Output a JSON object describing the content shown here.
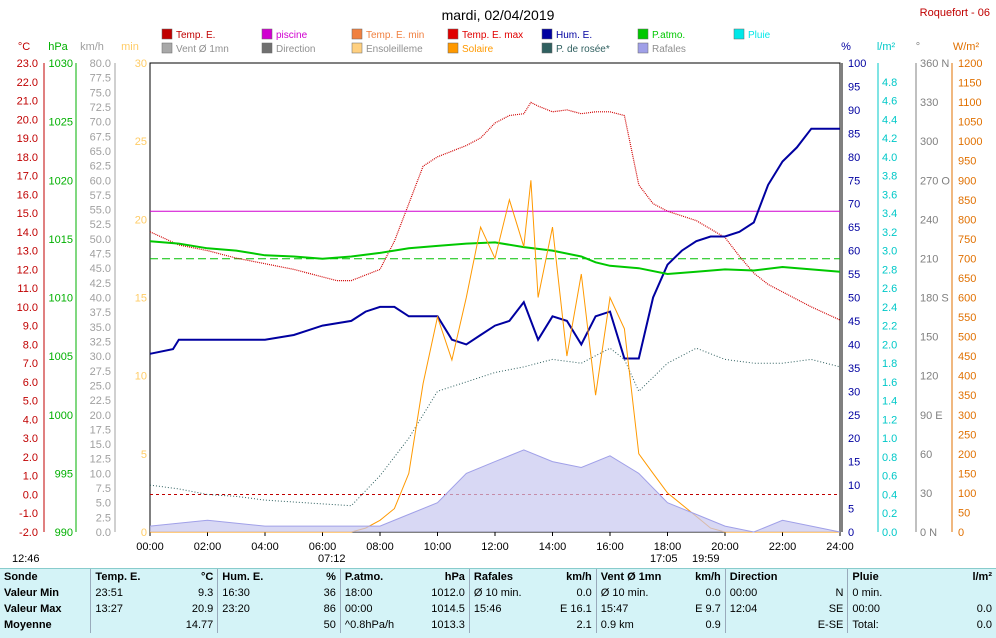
{
  "title": "mardi, 02/04/2019",
  "station": "Roquefort - 06",
  "legend": [
    {
      "label": "Temp. E.",
      "color": "#c00000"
    },
    {
      "label": "piscine",
      "color": "#d000d0"
    },
    {
      "label": "Temp. E. min",
      "color": "#f08040"
    },
    {
      "label": "Temp. E. max",
      "color": "#e00000"
    },
    {
      "label": "Hum. E.",
      "color": "#0000a0"
    },
    {
      "label": "P.atmo.",
      "color": "#00c800"
    },
    {
      "label": "Pluie",
      "color": "#00e8e8"
    },
    {
      "label": "Vent Ø 1mn",
      "color": "#a8a8a8"
    },
    {
      "label": "Direction",
      "color": "#707070"
    },
    {
      "label": "Ensoleilleme",
      "color": "#ffd080"
    },
    {
      "label": "Solaire",
      "color": "#ff9900"
    },
    {
      "label": "P. de rosée*",
      "color": "#306060"
    },
    {
      "label": "Rafales",
      "color": "#a0a0e8"
    }
  ],
  "axis_units": {
    "temp": "°C",
    "pressure": "hPa",
    "wind": "km/h",
    "minutes": "min",
    "humidity": "%",
    "rain": "l/m²",
    "direction": "°",
    "solar": "W/m²"
  },
  "sun_times": {
    "sunrise": "07:12",
    "sunset": "19:59",
    "solar_noon": "17:05",
    "start": "12:46"
  },
  "chart_data": {
    "type": "line",
    "x_unit": "hour",
    "xlim": [
      0,
      24
    ],
    "x_ticks": [
      "00:00",
      "02:00",
      "04:00",
      "06:00",
      "08:00",
      "10:00",
      "12:00",
      "14:00",
      "16:00",
      "18:00",
      "20:00",
      "22:00",
      "24:00"
    ],
    "y_axes": {
      "temp": {
        "range": [
          -2,
          23
        ],
        "ticks": [
          "23.0",
          "22.0",
          "21.0",
          "20.0",
          "19.0",
          "18.0",
          "17.0",
          "16.0",
          "15.0",
          "14.0",
          "13.0",
          "12.0",
          "11.0",
          "10.0",
          "9.0",
          "8.0",
          "7.0",
          "6.0",
          "5.0",
          "4.0",
          "3.0",
          "2.0",
          "1.0",
          "0.0",
          "-1.0",
          "-2.0"
        ]
      },
      "pressure": {
        "range": [
          990,
          1030
        ],
        "ticks": [
          "1030",
          "1025",
          "1020",
          "1015",
          "1010",
          "1005",
          "1000",
          "995",
          "990"
        ]
      },
      "wind": {
        "range": [
          0,
          80
        ],
        "ticks": [
          "80.0",
          "77.5",
          "75.0",
          "72.5",
          "70.0",
          "67.5",
          "65.0",
          "62.5",
          "60.0",
          "57.5",
          "55.0",
          "52.5",
          "50.0",
          "47.5",
          "45.0",
          "42.5",
          "40.0",
          "37.5",
          "35.0",
          "32.5",
          "30.0",
          "27.5",
          "25.0",
          "22.5",
          "20.0",
          "17.5",
          "15.0",
          "12.5",
          "10.0",
          "7.5",
          "5.0",
          "2.5",
          "0.0"
        ]
      },
      "minutes": {
        "range": [
          0,
          30
        ],
        "ticks": [
          "30",
          "25",
          "20",
          "15",
          "10",
          "5",
          "0"
        ]
      },
      "humidity": {
        "range": [
          0,
          100
        ],
        "ticks": [
          "100",
          "95",
          "90",
          "85",
          "80",
          "75",
          "70",
          "65",
          "60",
          "55",
          "50",
          "45",
          "40",
          "35",
          "30",
          "25",
          "20",
          "15",
          "10",
          "5",
          "0"
        ]
      },
      "rain": {
        "range": [
          0,
          5
        ],
        "ticks": [
          "4.8",
          "4.6",
          "4.4",
          "4.2",
          "4.0",
          "3.8",
          "3.6",
          "3.4",
          "3.2",
          "3.0",
          "2.8",
          "2.6",
          "2.4",
          "2.2",
          "2.0",
          "1.8",
          "1.6",
          "1.4",
          "1.2",
          "1.0",
          "0.8",
          "0.6",
          "0.4",
          "0.2",
          "0.0"
        ]
      },
      "direction": {
        "range": [
          0,
          360
        ],
        "ticks": [
          "360 N",
          "330",
          "300",
          "270 O",
          "240",
          "210",
          "180 S",
          "150",
          "120",
          "90 E",
          "60",
          "30",
          "0 N"
        ]
      },
      "solar": {
        "range": [
          0,
          1200
        ],
        "ticks": [
          "1200",
          "1150",
          "1100",
          "1050",
          "1000",
          "950",
          "900",
          "850",
          "800",
          "750",
          "700",
          "650",
          "600",
          "550",
          "500",
          "450",
          "400",
          "350",
          "300",
          "250",
          "200",
          "150",
          "100",
          "50",
          "0"
        ]
      }
    },
    "series": [
      {
        "name": "Temp. E.",
        "axis": "temp",
        "x": [
          0,
          1,
          2,
          3,
          4,
          5,
          6,
          6.5,
          7,
          8,
          8.5,
          9,
          9.5,
          10,
          10.5,
          11,
          11.5,
          12,
          12.5,
          13,
          13.25,
          13.5,
          14,
          14.5,
          15,
          15.5,
          16,
          16.5,
          17,
          17.5,
          18,
          19,
          20,
          20.5,
          21,
          21.5,
          22,
          23,
          24
        ],
        "y": [
          14.0,
          13.3,
          13.0,
          12.6,
          12.3,
          12.0,
          11.6,
          11.4,
          11.4,
          12.0,
          13.5,
          15.5,
          17.5,
          18.0,
          18.3,
          18.6,
          19.0,
          19.8,
          20.2,
          20.3,
          20.9,
          20.7,
          20.4,
          20.5,
          20.3,
          20.4,
          20.4,
          20.2,
          16.5,
          15.5,
          15.1,
          14.6,
          13.7,
          12.7,
          11.8,
          11.2,
          10.8,
          10.0,
          9.3
        ]
      },
      {
        "name": "piscine",
        "axis": "temp",
        "x": [
          0,
          24
        ],
        "y": [
          15.1,
          15.1
        ]
      },
      {
        "name": "Hum. E.",
        "axis": "humidity",
        "x": [
          0,
          0.8,
          1,
          2,
          3,
          4,
          5,
          5.5,
          6,
          7,
          7.5,
          8,
          8.5,
          9,
          9.5,
          10,
          10.5,
          11,
          11.5,
          12,
          12.5,
          13,
          13.5,
          14,
          14.5,
          15,
          15.5,
          16,
          16.5,
          17,
          17.5,
          18,
          18.5,
          19,
          19.5,
          20,
          20.5,
          21,
          21.5,
          22,
          22.5,
          23,
          24
        ],
        "y": [
          38,
          39,
          41,
          41,
          41,
          41,
          42,
          43,
          44,
          45,
          47,
          48,
          48,
          46,
          46,
          46,
          41,
          40,
          42,
          44,
          45,
          49,
          41,
          46,
          45,
          40,
          46,
          47,
          37,
          37,
          50,
          57,
          60,
          62,
          63,
          63,
          64,
          66,
          74,
          79,
          82,
          86,
          86
        ]
      },
      {
        "name": "P.atmo.",
        "axis": "pressure",
        "x": [
          0,
          1,
          2,
          3,
          4,
          5,
          6,
          7,
          8,
          9,
          10,
          11,
          12,
          13,
          14,
          15,
          15.5,
          16,
          17,
          18,
          19,
          20,
          21,
          22,
          23,
          24
        ],
        "y": [
          1014.8,
          1014.6,
          1014.2,
          1014.0,
          1013.6,
          1013.5,
          1013.3,
          1013.5,
          1013.8,
          1014.2,
          1014.4,
          1014.6,
          1014.7,
          1014.3,
          1014.0,
          1013.5,
          1013.0,
          1012.7,
          1012.5,
          1012.0,
          1012.2,
          1012.4,
          1012.3,
          1012.6,
          1012.4,
          1012.2
        ]
      },
      {
        "name": "P. de rosée*",
        "axis": "temp",
        "x": [
          0,
          1,
          2,
          3,
          4,
          5,
          6,
          7,
          8,
          9,
          10,
          11,
          12,
          13,
          14,
          15,
          16,
          16.5,
          17,
          18,
          19,
          20,
          21,
          22,
          23,
          24
        ],
        "y": [
          0.5,
          0.3,
          0.0,
          -0.1,
          -0.3,
          -0.4,
          -0.5,
          -0.6,
          1.0,
          3.0,
          5.5,
          6.0,
          6.5,
          6.8,
          7.2,
          7.0,
          7.8,
          7.2,
          5.5,
          7.0,
          7.8,
          7.2,
          7.0,
          7.0,
          7.2,
          6.8
        ]
      },
      {
        "name": "Solaire",
        "axis": "solar",
        "x": [
          0,
          7,
          7.5,
          8,
          8.5,
          9,
          9.5,
          10,
          10.5,
          11,
          11.5,
          12,
          12.5,
          13,
          13.25,
          13.5,
          14,
          14.5,
          15,
          15.5,
          16,
          16.5,
          17,
          17.5,
          18,
          18.5,
          19,
          19.5,
          20,
          24
        ],
        "y": [
          0,
          0,
          10,
          30,
          60,
          150,
          380,
          550,
          440,
          600,
          780,
          700,
          850,
          730,
          900,
          600,
          780,
          450,
          660,
          350,
          600,
          520,
          200,
          150,
          100,
          70,
          40,
          10,
          0,
          0
        ]
      },
      {
        "name": "Rafales",
        "axis": "wind",
        "x": [
          0,
          2,
          4,
          6,
          8,
          9,
          10,
          11,
          12,
          13,
          14,
          15,
          16,
          17,
          18,
          19,
          20,
          21,
          22,
          23,
          24
        ],
        "y": [
          1,
          2,
          1,
          1,
          1,
          3,
          5,
          10,
          12,
          14,
          12,
          11,
          13,
          10,
          5,
          3,
          1,
          0,
          2,
          1,
          0
        ]
      }
    ]
  },
  "summary": {
    "headers": [
      {
        "name": "Sonde",
        "unit": ""
      },
      {
        "name": "Temp. E.",
        "unit": "°C"
      },
      {
        "name": "Hum. E.",
        "unit": "%"
      },
      {
        "name": "P.atmo.",
        "unit": "hPa"
      },
      {
        "name": "Rafales",
        "unit": "km/h"
      },
      {
        "name": "Vent Ø 1mn",
        "unit": "km/h"
      },
      {
        "name": "Direction",
        "unit": ""
      },
      {
        "name": "Pluie",
        "unit": "l/m²"
      }
    ],
    "rows": [
      {
        "label": "Valeur Min",
        "cells": [
          [
            "23:51",
            "9.3"
          ],
          [
            "16:30",
            "36"
          ],
          [
            "18:00",
            "1012.0"
          ],
          [
            "Ø 10 min.",
            "0.0"
          ],
          [
            "Ø 10 min.",
            "0.0"
          ],
          [
            "00:00",
            "N"
          ],
          [
            "0 min.",
            ""
          ]
        ]
      },
      {
        "label": "Valeur Max",
        "cells": [
          [
            "13:27",
            "20.9"
          ],
          [
            "23:20",
            "86"
          ],
          [
            "00:00",
            "1014.5"
          ],
          [
            "15:46",
            "E 16.1"
          ],
          [
            "15:47",
            "E 9.7"
          ],
          [
            "12:04",
            "SE"
          ],
          [
            "00:00",
            "0.0"
          ]
        ]
      },
      {
        "label": "Moyenne",
        "cells": [
          [
            "",
            "14.77"
          ],
          [
            "",
            "50"
          ],
          [
            "^0.8hPa/h",
            "1013.3"
          ],
          [
            "",
            "2.1"
          ],
          [
            "0.9 km",
            "0.9"
          ],
          [
            "",
            "E-SE"
          ],
          [
            "Total:",
            "0.0"
          ]
        ]
      }
    ]
  }
}
